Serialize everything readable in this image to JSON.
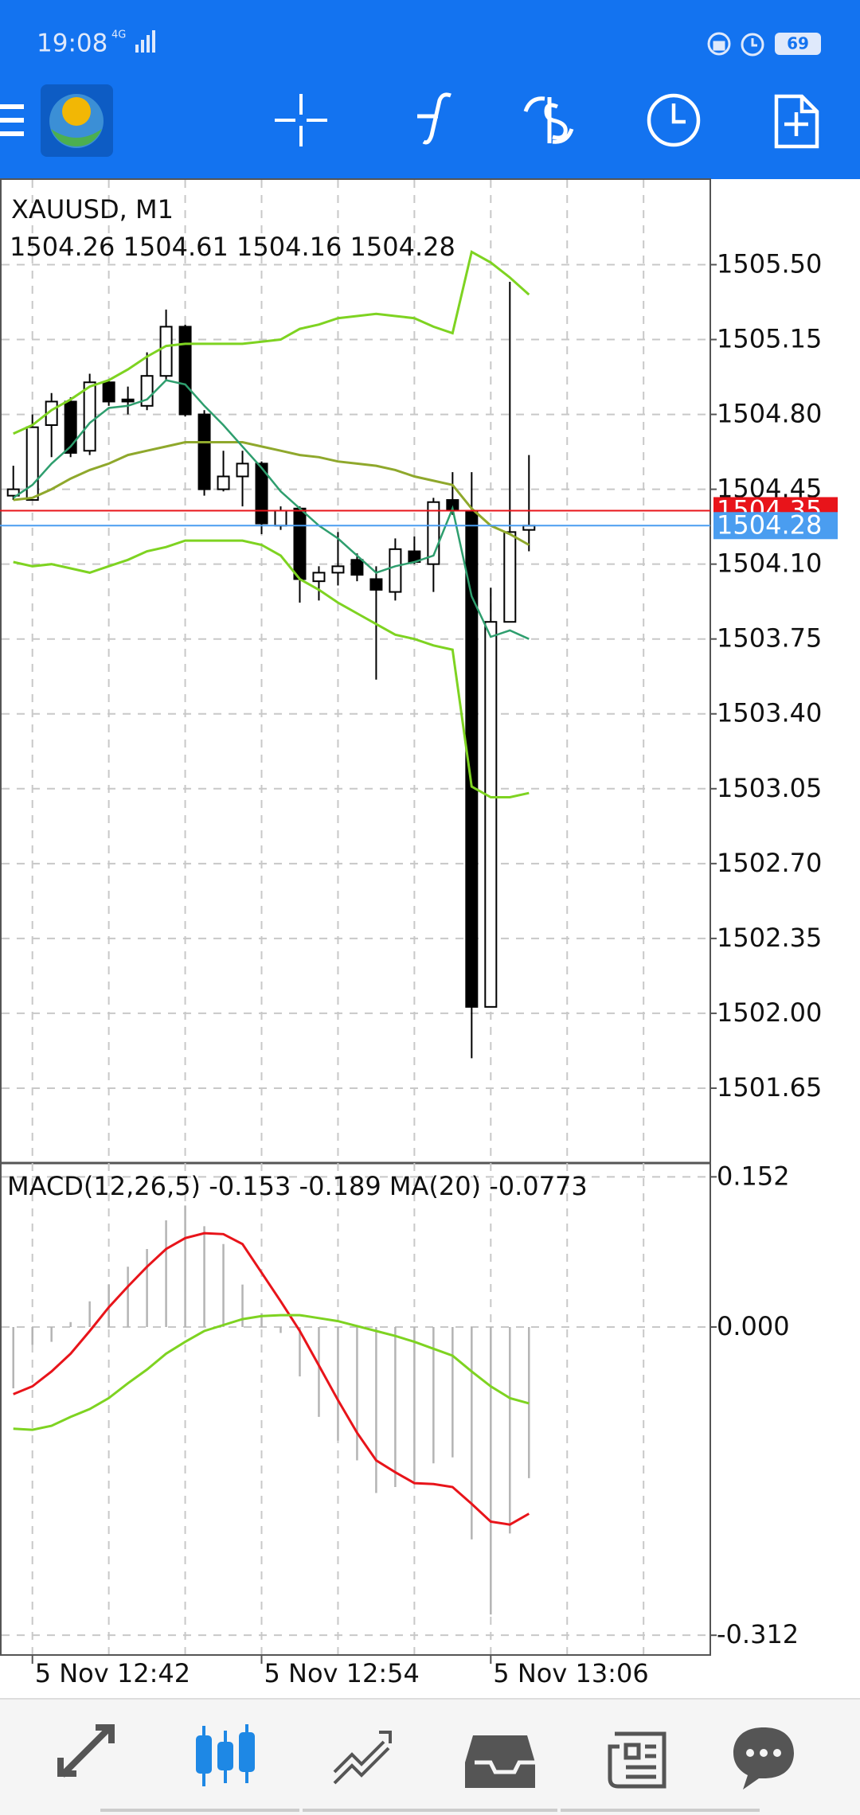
{
  "status_bar": {
    "time": "19:08",
    "network": "4G",
    "battery": "69"
  },
  "chart_data": [
    {
      "type": "candlestick",
      "title": "XAUUSD, M1",
      "subtitle": "1504.26 1504.61 1504.16 1504.28",
      "categories": [
        null,
        "5 Nov 12:42",
        null,
        null,
        null,
        null,
        null,
        null,
        null,
        null,
        null,
        null,
        null,
        "5 Nov 12:54",
        null,
        null,
        null,
        null,
        null,
        null,
        null,
        null,
        null,
        null,
        null,
        "5 Nov 13:06",
        null,
        null
      ],
      "open": [
        1504.42,
        1504.4,
        1504.75,
        1504.86,
        1504.63,
        1504.95,
        1504.87,
        1504.84,
        1504.98,
        1505.21,
        1504.8,
        1504.45,
        1504.51,
        1504.57,
        1504.28,
        1504.36,
        1504.02,
        1504.06,
        1504.12,
        1504.03,
        1503.97,
        1504.16,
        1504.1,
        1504.4,
        1504.35,
        1502.03,
        1503.83,
        1504.26
      ],
      "high": [
        1504.56,
        1504.8,
        1504.9,
        1504.88,
        1504.99,
        1504.96,
        1504.93,
        1505.09,
        1505.29,
        1505.22,
        1504.82,
        1504.63,
        1504.63,
        1504.58,
        1504.37,
        1504.37,
        1504.09,
        1504.25,
        1504.15,
        1504.09,
        1504.22,
        1504.23,
        1504.41,
        1504.53,
        1504.53,
        1503.99,
        1505.42,
        1504.61
      ],
      "low": [
        1504.4,
        1504.4,
        1504.6,
        1504.6,
        1504.61,
        1504.84,
        1504.8,
        1504.82,
        1504.96,
        1504.79,
        1504.42,
        1504.44,
        1504.37,
        1504.24,
        1504.26,
        1503.92,
        1503.93,
        1504.0,
        1504.02,
        1503.56,
        1503.93,
        1504.1,
        1503.97,
        1504.33,
        1501.79,
        1502.03,
        1503.83,
        1504.16
      ],
      "close": [
        1504.45,
        1504.74,
        1504.86,
        1504.62,
        1504.95,
        1504.86,
        1504.86,
        1504.98,
        1505.21,
        1504.8,
        1504.45,
        1504.51,
        1504.57,
        1504.29,
        1504.35,
        1504.03,
        1504.06,
        1504.09,
        1504.05,
        1503.98,
        1504.17,
        1504.11,
        1504.39,
        1504.35,
        1502.03,
        1503.83,
        1504.25,
        1504.28
      ],
      "lines": [
        {
          "color": "#7ed321",
          "values": [
            1504.71,
            1504.75,
            1504.82,
            1504.87,
            1504.93,
            1504.96,
            1505.01,
            1505.07,
            1505.12,
            1505.13,
            1505.13,
            1505.13,
            1505.13,
            1505.14,
            1505.15,
            1505.2,
            1505.22,
            1505.25,
            1505.26,
            1505.27,
            1505.26,
            1505.25,
            1505.21,
            1505.18,
            1505.56,
            1505.51,
            1505.44,
            1505.36
          ]
        },
        {
          "color": "#8fa82c",
          "values": [
            1504.4,
            1504.41,
            1504.45,
            1504.5,
            1504.54,
            1504.57,
            1504.61,
            1504.63,
            1504.65,
            1504.67,
            1504.67,
            1504.67,
            1504.67,
            1504.65,
            1504.63,
            1504.61,
            1504.6,
            1504.58,
            1504.57,
            1504.56,
            1504.54,
            1504.51,
            1504.49,
            1504.47,
            1504.36,
            1504.28,
            1504.24,
            1504.19
          ]
        },
        {
          "color": "#7ed321",
          "values": [
            1504.11,
            1504.09,
            1504.1,
            1504.08,
            1504.06,
            1504.09,
            1504.12,
            1504.16,
            1504.18,
            1504.21,
            1504.21,
            1504.21,
            1504.21,
            1504.19,
            1504.14,
            1504.03,
            1503.98,
            1503.92,
            1503.87,
            1503.82,
            1503.77,
            1503.75,
            1503.72,
            1503.7,
            1503.06,
            1503.01,
            1503.01,
            1503.03
          ]
        },
        {
          "color": "#2e9e6e",
          "values": [
            1504.41,
            1504.47,
            1504.57,
            1504.65,
            1504.76,
            1504.83,
            1504.84,
            1504.87,
            1504.96,
            1504.94,
            1504.84,
            1504.75,
            1504.65,
            1504.55,
            1504.44,
            1504.36,
            1504.28,
            1504.22,
            1504.14,
            1504.06,
            1504.09,
            1504.11,
            1504.14,
            1504.36,
            1503.95,
            1503.76,
            1503.79,
            1503.75
          ]
        }
      ],
      "price_lines": [
        {
          "value": 1504.35,
          "label": "1504.35",
          "color": "#e8141a"
        },
        {
          "value": 1504.28,
          "label": "1504.28",
          "color": "#4a9df0"
        }
      ],
      "ylim": [
        1501.3,
        1505.9
      ],
      "yticks": [
        {
          "value": 1505.5,
          "label": "1505.50"
        },
        1505.15,
        {
          "value": 1504.8,
          "label": "1504.80"
        },
        1504.45,
        {
          "value": 1504.1,
          "label": "1504.10"
        },
        1503.75,
        {
          "value": 1503.4,
          "label": "1503.40"
        },
        1503.05,
        {
          "value": 1502.7,
          "label": "1502.70"
        },
        1502.35,
        {
          "value": 1502.0,
          "label": "1502.00"
        },
        1501.65
      ],
      "grid": true
    },
    {
      "type": "macd",
      "title": "MACD(12,26,5) -0.153 -0.189 MA(20) -0.0773",
      "series": [
        {
          "type": "histogram",
          "color": "#b4b4b4",
          "values": [
            -0.062,
            -0.018,
            -0.015,
            0.005,
            0.026,
            0.043,
            0.061,
            0.079,
            0.108,
            0.123,
            0.102,
            0.084,
            0.043,
            0.014,
            -0.006,
            -0.05,
            -0.091,
            -0.115,
            -0.135,
            -0.168,
            -0.162,
            -0.156,
            -0.138,
            -0.132,
            -0.215,
            -0.291,
            -0.209,
            -0.153
          ]
        },
        {
          "type": "line",
          "color": "#e8141a",
          "values": [
            -0.068,
            -0.06,
            -0.045,
            -0.027,
            -0.004,
            0.02,
            0.041,
            0.061,
            0.079,
            0.09,
            0.095,
            0.094,
            0.084,
            0.055,
            0.026,
            -0.004,
            -0.039,
            -0.074,
            -0.107,
            -0.135,
            -0.147,
            -0.158,
            -0.159,
            -0.162,
            -0.179,
            -0.197,
            -0.2,
            -0.189
          ]
        },
        {
          "type": "line",
          "color": "#7ed321",
          "values": [
            -0.103,
            -0.104,
            -0.1,
            -0.091,
            -0.083,
            -0.072,
            -0.057,
            -0.043,
            -0.027,
            -0.015,
            -0.004,
            0.002,
            0.008,
            0.011,
            0.012,
            0.012,
            0.009,
            0.006,
            0.001,
            -0.004,
            -0.009,
            -0.015,
            -0.022,
            -0.029,
            -0.045,
            -0.06,
            -0.072,
            -0.0773
          ]
        }
      ],
      "ylim": [
        -0.332,
        0.166
      ],
      "yticks": [
        0.152,
        {
          "value": 0,
          "label": "0.000"
        },
        -0.312
      ],
      "grid": true
    }
  ]
}
